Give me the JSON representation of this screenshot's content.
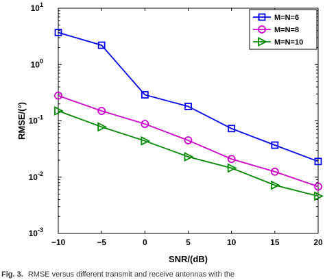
{
  "caption": {
    "label": "Fig. 3.",
    "text": "RMSE versus different transmit and receive antennas with the"
  },
  "chart_data": {
    "type": "line",
    "title": "",
    "xlabel": "SNR/(dB)",
    "ylabel": "RMSE/(°)",
    "xscale": "linear",
    "yscale": "log",
    "xlim": [
      -10,
      20
    ],
    "ylim": [
      0.001,
      10
    ],
    "x": [
      -10,
      -5,
      0,
      5,
      10,
      15,
      20
    ],
    "xticks": [
      "−10",
      "−5",
      "0",
      "5",
      "10",
      "15",
      "20"
    ],
    "yticks": [
      {
        "base": "10",
        "exp": "-3",
        "value": 0.001
      },
      {
        "base": "10",
        "exp": "-2",
        "value": 0.01
      },
      {
        "base": "10",
        "exp": "-1",
        "value": 0.1
      },
      {
        "base": "10",
        "exp": "0",
        "value": 1
      },
      {
        "base": "10",
        "exp": "1",
        "value": 10
      }
    ],
    "legend_position": "top-right",
    "grid": false,
    "series": [
      {
        "name": "M=N=6",
        "color": "#0000ee",
        "marker": "square",
        "values": [
          3.7,
          2.2,
          0.29,
          0.18,
          0.073,
          0.037,
          0.019
        ]
      },
      {
        "name": "M=N=8",
        "color": "#cc00cc",
        "marker": "circle",
        "values": [
          0.28,
          0.15,
          0.088,
          0.045,
          0.021,
          0.0125,
          0.0068
        ]
      },
      {
        "name": "M=N=10",
        "color": "#008800",
        "marker": "triangle-right",
        "values": [
          0.15,
          0.078,
          0.044,
          0.023,
          0.0145,
          0.0072,
          0.0046
        ]
      }
    ]
  }
}
